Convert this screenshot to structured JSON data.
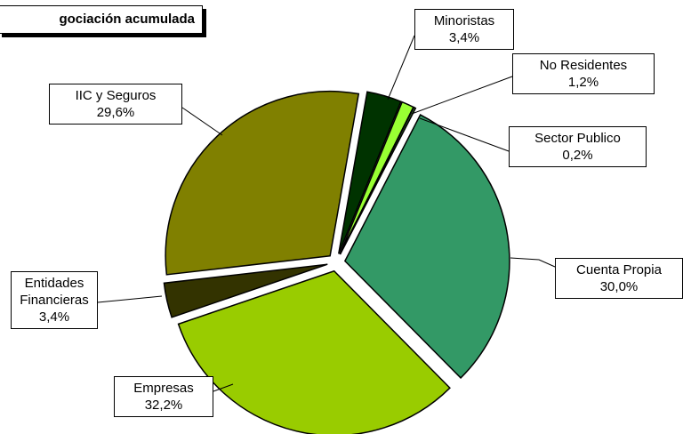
{
  "chart_data": {
    "type": "pie",
    "title": "gociación acumulada",
    "categories": [
      "Minoristas",
      "No Residentes",
      "Sector Publico",
      "Cuenta Propia",
      "Empresas",
      "Entidades Financieras",
      "IIC y Seguros"
    ],
    "values": [
      3.4,
      1.2,
      0.2,
      30.0,
      32.2,
      3.4,
      29.6
    ],
    "value_labels": [
      "3,4%",
      "1,2%",
      "0,2%",
      "30,0%",
      "32,2%",
      "3,4%",
      "29,6%"
    ],
    "colors": [
      "#003300",
      "#99ff33",
      "#336633",
      "#339966",
      "#99cc00",
      "#333300",
      "#808000"
    ]
  }
}
